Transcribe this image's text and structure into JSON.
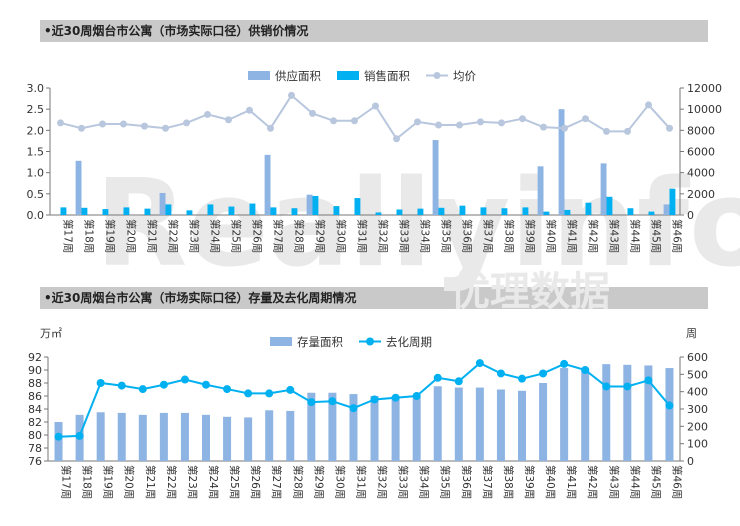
{
  "header1": "•近30周烟台市公寓（市场实际口径）供销价情况",
  "header2": "•近30周烟台市公寓（市场实际口径）存量及去化周期情况",
  "watermark": {
    "text": "Reallyinfo",
    "cn": "优理数据"
  },
  "colors": {
    "supply": "#8eb4e3",
    "sales": "#00b0f0",
    "price": "#b8c7dd",
    "stock": "#8eb4e3",
    "cycle": "#00b0f0"
  },
  "chart_data": [
    {
      "type": "bar",
      "categories": [
        "第17周",
        "第18周",
        "第19周",
        "第20周",
        "第21周",
        "第22周",
        "第23周",
        "第24周",
        "第25周",
        "第26周",
        "第27周",
        "第28周",
        "第29周",
        "第30周",
        "第31周",
        "第32周",
        "第33周",
        "第34周",
        "第35周",
        "第36周",
        "第37周",
        "第38周",
        "第39周",
        "第40周",
        "第41周",
        "第42周",
        "第43周",
        "第44周",
        "第45周",
        "第46周"
      ],
      "series": [
        {
          "name": "供应面积",
          "axis": "left",
          "kind": "bar",
          "values": [
            0,
            1.28,
            0,
            0,
            0,
            0.52,
            0,
            0,
            0,
            0,
            1.42,
            0,
            0.48,
            0,
            0,
            0,
            0,
            0,
            1.77,
            0,
            0,
            0,
            0,
            1.15,
            2.5,
            0,
            1.22,
            0,
            0,
            0.25
          ]
        },
        {
          "name": "销售面积",
          "axis": "left",
          "kind": "bar",
          "values": [
            0.18,
            0.17,
            0.14,
            0.18,
            0.15,
            0.25,
            0.11,
            0.25,
            0.2,
            0.27,
            0.18,
            0.16,
            0.45,
            0.21,
            0.4,
            0.06,
            0.13,
            0.15,
            0.17,
            0.22,
            0.18,
            0.16,
            0.18,
            0.08,
            0.12,
            0.29,
            0.43,
            0.16,
            0.08,
            0.62
          ]
        },
        {
          "name": "均价",
          "axis": "right",
          "kind": "line",
          "values": [
            8700,
            8200,
            8600,
            8600,
            8400,
            8200,
            8700,
            9500,
            9000,
            9900,
            8200,
            11300,
            9600,
            8900,
            8900,
            10300,
            7200,
            8800,
            8500,
            8500,
            8800,
            8700,
            9100,
            8300,
            8200,
            9100,
            7900,
            7900,
            10400,
            8200
          ]
        }
      ],
      "yleft": {
        "ticks": [
          "0.0",
          "0.5",
          "1.0",
          "1.5",
          "2.0",
          "2.5",
          "3.0"
        ],
        "ylim": [
          0,
          3
        ]
      },
      "yright": {
        "ticks": [
          "0",
          "2000",
          "4000",
          "6000",
          "8000",
          "10000",
          "12000"
        ],
        "ylim": [
          0,
          12000
        ]
      },
      "legend": "top-center"
    },
    {
      "type": "bar",
      "categories": [
        "第17周",
        "第18周",
        "第19周",
        "第20周",
        "第21周",
        "第22周",
        "第23周",
        "第24周",
        "第25周",
        "第26周",
        "第27周",
        "第28周",
        "第29周",
        "第30周",
        "第31周",
        "第32周",
        "第33周",
        "第34周",
        "第35周",
        "第36周",
        "第37周",
        "第38周",
        "第39周",
        "第40周",
        "第41周",
        "第42周",
        "第43周",
        "第44周",
        "第45周",
        "第46周"
      ],
      "series": [
        {
          "name": "存量面积",
          "axis": "left",
          "kind": "bar",
          "values": [
            82.0,
            83.1,
            83.5,
            83.4,
            83.1,
            83.4,
            83.4,
            83.1,
            82.8,
            82.7,
            83.8,
            83.7,
            86.5,
            86.5,
            86.3,
            86.0,
            86.0,
            86.0,
            87.5,
            87.3,
            87.3,
            87.0,
            86.8,
            88.0,
            90.3,
            90.0,
            90.9,
            90.8,
            90.7,
            90.3
          ]
        },
        {
          "name": "去化周期",
          "axis": "right",
          "kind": "line",
          "values": [
            140,
            145,
            450,
            435,
            415,
            440,
            470,
            440,
            415,
            390,
            390,
            410,
            340,
            345,
            305,
            355,
            365,
            375,
            480,
            460,
            565,
            505,
            475,
            505,
            560,
            525,
            430,
            430,
            465,
            320
          ]
        }
      ],
      "yleft": {
        "title": "万㎡",
        "ticks": [
          "76",
          "78",
          "80",
          "82",
          "84",
          "86",
          "88",
          "90",
          "92"
        ],
        "ylim": [
          76,
          92
        ]
      },
      "yright": {
        "title": "周",
        "ticks": [
          "0",
          "100",
          "200",
          "300",
          "400",
          "500",
          "600"
        ],
        "ylim": [
          0,
          600
        ]
      },
      "legend": "top-center"
    }
  ]
}
